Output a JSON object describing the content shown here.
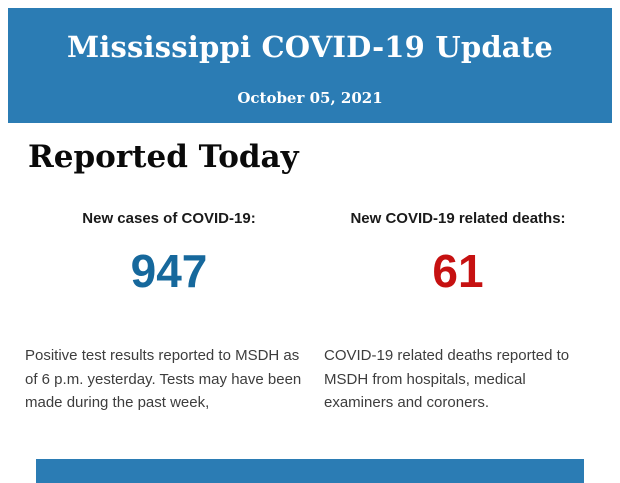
{
  "theme": {
    "banner_blue": "#2b7cb4",
    "cases_value_blue": "#16689c",
    "deaths_value_red": "#c61111",
    "body_text_gray": "#3d3d3d",
    "heading_black": "#0a0a0a",
    "banner_text_white": "#ffffff"
  },
  "header": {
    "title": "Mississippi COVID-19 Update",
    "date": "October 05, 2021"
  },
  "section": {
    "heading": "Reported Today"
  },
  "stats": [
    {
      "label": "New cases of COVID-19:",
      "value": "947",
      "value_color": "#16689c",
      "description": "Positive test results reported to MSDH as of 6 p.m. yesterday. Tests may have been made during the past week,"
    },
    {
      "label": "New COVID-19 related deaths:",
      "value": "61",
      "value_color": "#c61111",
      "description": "COVID-19 related deaths reported to MSDH from hospitals, medical examiners and coroners."
    }
  ]
}
